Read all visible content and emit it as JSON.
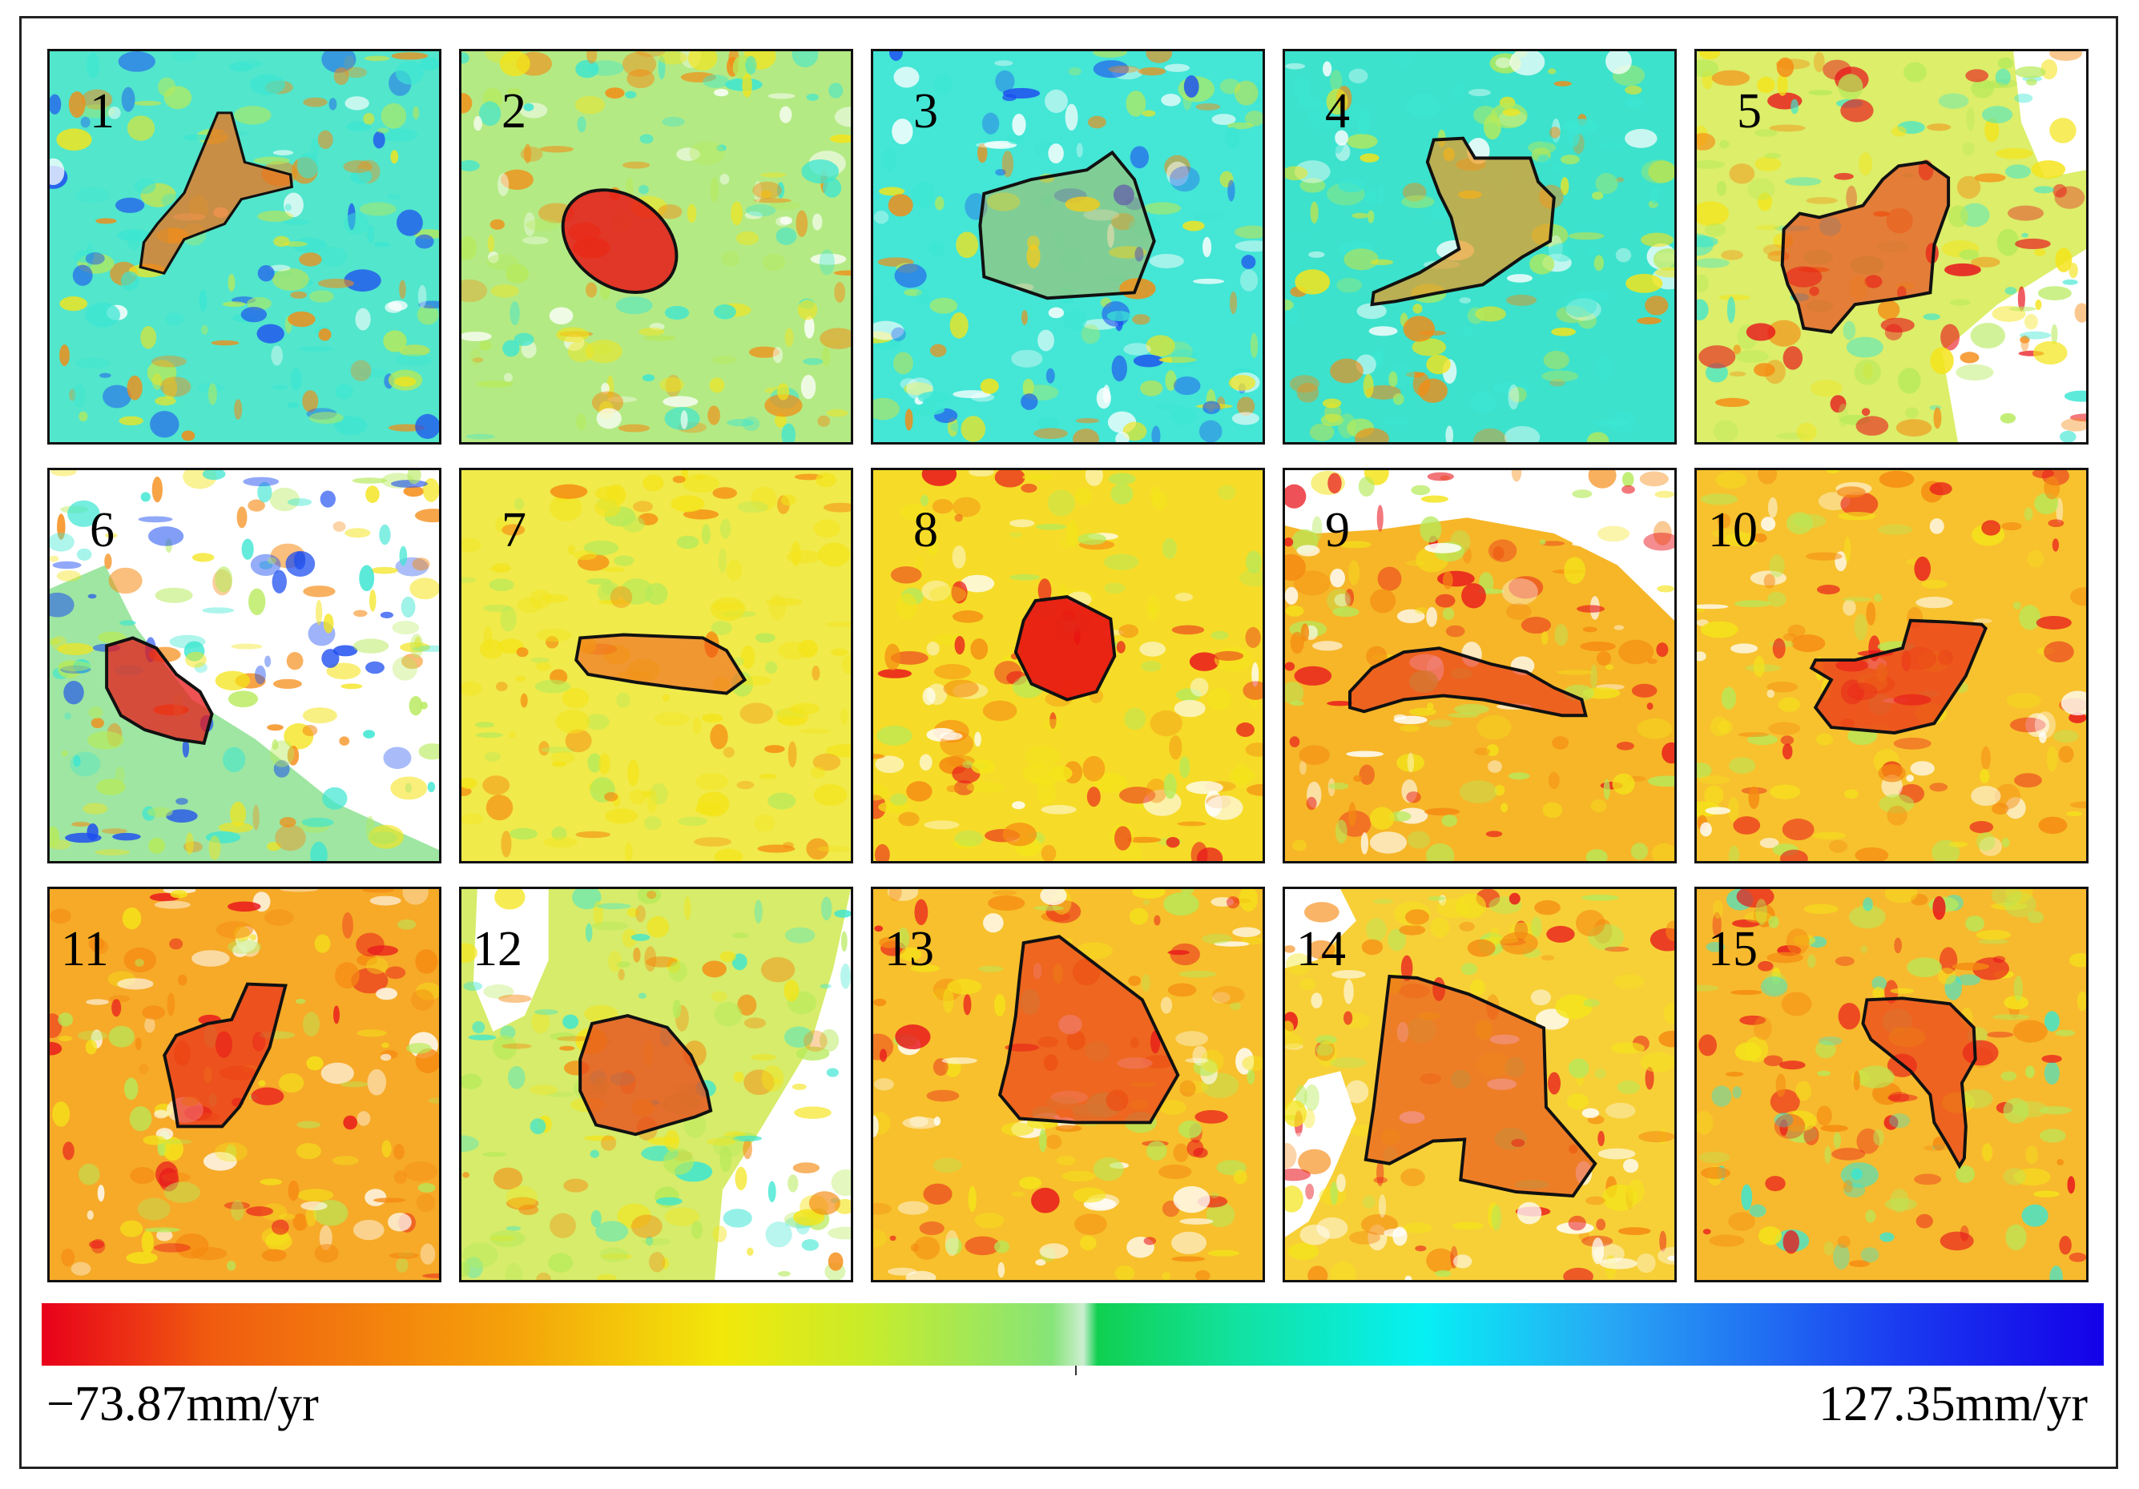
{
  "colors": {
    "red": "#e8141c",
    "orange": "#f58a12",
    "yellow": "#f4e41a",
    "light_green": "#b6ea5a",
    "cyan": "#3be6d2",
    "blue": "#1e4ef0",
    "white": "#ffffff",
    "outline": "#111111"
  },
  "panels": [
    {
      "label": "1",
      "bg": "#52e6cc"
    },
    {
      "label": "2",
      "bg": "#b4ea84"
    },
    {
      "label": "3",
      "bg": "#44e6d6"
    },
    {
      "label": "4",
      "bg": "#3ce2cc"
    },
    {
      "label": "5",
      "bg": "#dcee6a"
    },
    {
      "label": "6",
      "bg": "#ffffff"
    },
    {
      "label": "7",
      "bg": "#f0ea4a"
    },
    {
      "label": "8",
      "bg": "#f6dc28"
    },
    {
      "label": "9",
      "bg": "#f6b628"
    },
    {
      "label": "10",
      "bg": "#f7c22e"
    },
    {
      "label": "11",
      "bg": "#f6aa28"
    },
    {
      "label": "12",
      "bg": "#d6ec6a"
    },
    {
      "label": "13",
      "bg": "#f7c02c"
    },
    {
      "label": "14",
      "bg": "#f7d038"
    },
    {
      "label": "15",
      "bg": "#f7ba2e"
    }
  ],
  "colorbar": {
    "min_label": "−73.87mm/yr",
    "max_label": "127.35mm/yr"
  }
}
